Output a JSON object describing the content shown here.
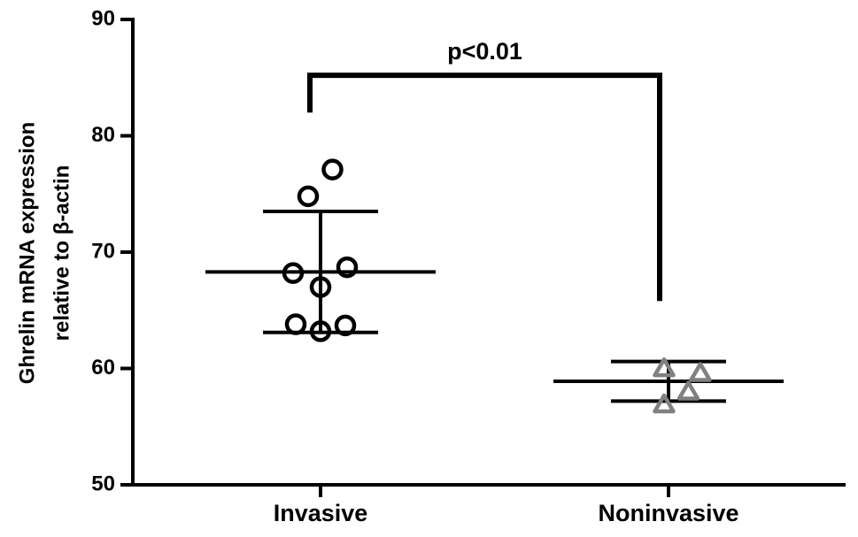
{
  "chart_data": {
    "type": "scatter",
    "ylabel_lines": [
      "Ghrelin mRNA expression",
      "relative to β-actin"
    ],
    "yticks": [
      50,
      60,
      70,
      80,
      90
    ],
    "ylim": [
      50,
      90
    ],
    "categories": [
      "Invasive",
      "Noninvasive"
    ],
    "grid": false,
    "legend": "none",
    "groups": [
      {
        "category": "Invasive",
        "marker": "circle",
        "color": "#000000",
        "points": [
          {
            "offset": 0.27,
            "y": 77.1
          },
          {
            "offset": -0.28,
            "y": 74.8
          },
          {
            "offset": -0.62,
            "y": 68.2
          },
          {
            "offset": 0.6,
            "y": 68.7
          },
          {
            "offset": 0.0,
            "y": 67.0
          },
          {
            "offset": -0.56,
            "y": 63.8
          },
          {
            "offset": 0.56,
            "y": 63.7
          },
          {
            "offset": 0.0,
            "y": 63.2
          }
        ],
        "mean": 68.3,
        "sd_upper": 73.5,
        "sd_lower": 63.1
      },
      {
        "category": "Noninvasive",
        "marker": "triangle",
        "color": "#808080",
        "points": [
          {
            "offset": -0.1,
            "y": 60.1
          },
          {
            "offset": 0.72,
            "y": 59.7
          },
          {
            "offset": 0.45,
            "y": 58.1
          },
          {
            "offset": -0.1,
            "y": 57.0
          }
        ],
        "mean": 58.9,
        "sd_upper": 60.6,
        "sd_lower": 57.2
      }
    ],
    "annotation": {
      "text": "p<0.01",
      "bracket_y": 85.2,
      "left_end_y": 82.0,
      "right_end_y": 65.8
    }
  }
}
